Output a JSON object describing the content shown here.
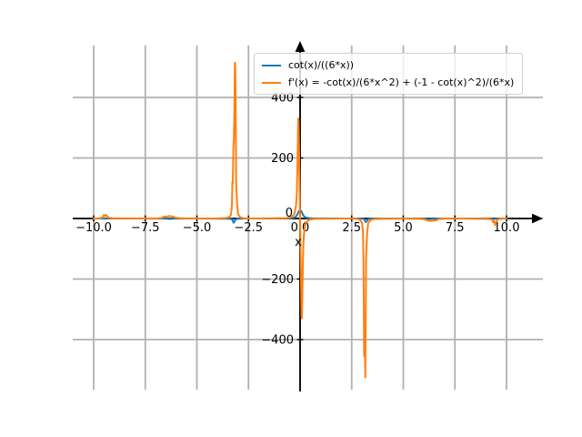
{
  "figure": {
    "background": "#ffffff"
  },
  "axes": {
    "xlabel": "x",
    "grid_color": "#b0b0b0",
    "axis_color": "#000000",
    "tick_label_color": "#000000"
  },
  "chart_data": {
    "type": "line",
    "title": "",
    "xlabel": "x",
    "ylabel": "",
    "xlim": [
      -11,
      11.7
    ],
    "ylim": [
      -585,
      600
    ],
    "grid": true,
    "legend_position": "upper center",
    "xticks": [
      {
        "value": -10,
        "label": "−10.0"
      },
      {
        "value": -7.5,
        "label": "−7.5"
      },
      {
        "value": -5,
        "label": "−5.0"
      },
      {
        "value": -2.5,
        "label": "−2.5"
      },
      {
        "value": 0,
        "label": "0.0"
      },
      {
        "value": 2.5,
        "label": "2.5"
      },
      {
        "value": 5,
        "label": "5.0"
      },
      {
        "value": 7.5,
        "label": "7.5"
      },
      {
        "value": 10,
        "label": "10.0"
      }
    ],
    "yticks": [
      {
        "value": -400,
        "label": "−400"
      },
      {
        "value": -200,
        "label": "−200"
      },
      {
        "value": 0,
        "label": "0"
      },
      {
        "value": 200,
        "label": "200"
      },
      {
        "value": 400,
        "label": "400"
      }
    ],
    "series": [
      {
        "name": "cot(x)/((6*x))",
        "color": "#1f77b4",
        "points": [
          [
            -10,
            0.05
          ],
          [
            -9.6,
            0.05
          ],
          [
            -9.45,
            -0.4
          ],
          [
            -9.3,
            -0.1
          ],
          [
            -8,
            0.05
          ],
          [
            -6.5,
            -0.3
          ],
          [
            -6.3,
            -1.5
          ],
          [
            -6.15,
            -0.3
          ],
          [
            -5,
            0.05
          ],
          [
            -3.45,
            -0.6
          ],
          [
            -3.3,
            -2
          ],
          [
            -3.22,
            -14
          ],
          [
            -3.1,
            -2
          ],
          [
            -3,
            -0.6
          ],
          [
            -2.5,
            0.1
          ],
          [
            -1,
            0.2
          ],
          [
            -0.6,
            0.6
          ],
          [
            -0.45,
            1.2
          ],
          [
            -0.35,
            2.2
          ],
          [
            -0.25,
            4
          ],
          [
            -0.18,
            8
          ],
          [
            -0.12,
            15
          ],
          [
            -0.06,
            24
          ],
          [
            0,
            28
          ],
          [
            0.06,
            24
          ],
          [
            0.12,
            15
          ],
          [
            0.18,
            8
          ],
          [
            0.25,
            4
          ],
          [
            0.35,
            2.2
          ],
          [
            0.45,
            1.2
          ],
          [
            0.6,
            0.6
          ],
          [
            1,
            0.2
          ],
          [
            2.5,
            0.1
          ],
          [
            3,
            -0.6
          ],
          [
            3.1,
            -2
          ],
          [
            3.18,
            -12
          ],
          [
            3.3,
            -2
          ],
          [
            3.45,
            -0.6
          ],
          [
            5,
            0.05
          ],
          [
            6.1,
            -0.5
          ],
          [
            6.25,
            -2.5
          ],
          [
            6.4,
            -0.5
          ],
          [
            8,
            0.05
          ],
          [
            9.2,
            -0.8
          ],
          [
            9.35,
            -2.5
          ],
          [
            9.5,
            -0.5
          ],
          [
            10,
            0.05
          ]
        ]
      },
      {
        "name": "f'(x) = -cot(x)/(6*x^2) + (-1 - cot(x)^2)/(6*x)",
        "color": "#ff7f0e",
        "points": [
          [
            -10,
            -0.15
          ],
          [
            -9.7,
            0.6
          ],
          [
            -9.55,
            4
          ],
          [
            -9.5,
            12
          ],
          [
            -9.45,
            8
          ],
          [
            -9.4,
            12
          ],
          [
            -9.3,
            3
          ],
          [
            -9.1,
            0.8
          ],
          [
            -8.5,
            0.2
          ],
          [
            -7,
            0.1
          ],
          [
            -6.7,
            1.5
          ],
          [
            -6.6,
            6
          ],
          [
            -6.45,
            7
          ],
          [
            -6.3,
            8
          ],
          [
            -6.15,
            6
          ],
          [
            -6,
            2
          ],
          [
            -5.8,
            0.6
          ],
          [
            -5,
            0.15
          ],
          [
            -4,
            0.3
          ],
          [
            -3.6,
            1.5
          ],
          [
            -3.45,
            4
          ],
          [
            -3.35,
            12
          ],
          [
            -3.3,
            45
          ],
          [
            -3.28,
            120
          ],
          [
            -3.26,
            115
          ],
          [
            -3.24,
            210
          ],
          [
            -3.22,
            255
          ],
          [
            -3.21,
            250
          ],
          [
            -3.19,
            330
          ],
          [
            -3.17,
            420
          ],
          [
            -3.16,
            515
          ],
          [
            -3.14,
            500
          ],
          [
            -3.12,
            380
          ],
          [
            -3.1,
            120
          ],
          [
            -3.05,
            45
          ],
          [
            -3,
            14
          ],
          [
            -2.9,
            4
          ],
          [
            -2.75,
            1
          ],
          [
            -2.5,
            0.3
          ],
          [
            -2,
            0.1
          ],
          [
            -1.5,
            0.2
          ],
          [
            -1,
            0.5
          ],
          [
            -0.7,
            1.2
          ],
          [
            -0.5,
            3
          ],
          [
            -0.4,
            6
          ],
          [
            -0.3,
            12
          ],
          [
            -0.25,
            22
          ],
          [
            -0.2,
            42
          ],
          [
            -0.16,
            82
          ],
          [
            -0.13,
            160
          ],
          [
            -0.11,
            250
          ],
          [
            -0.09,
            330
          ],
          [
            -0.07,
            320
          ],
          [
            0.07,
            -320
          ],
          [
            0.09,
            -330
          ],
          [
            0.11,
            -250
          ],
          [
            0.13,
            -160
          ],
          [
            0.16,
            -82
          ],
          [
            0.2,
            -42
          ],
          [
            0.25,
            -22
          ],
          [
            0.3,
            -12
          ],
          [
            0.4,
            -6
          ],
          [
            0.5,
            -3
          ],
          [
            0.7,
            -1.2
          ],
          [
            1,
            -0.5
          ],
          [
            1.5,
            -0.2
          ],
          [
            2,
            -0.1
          ],
          [
            2.5,
            -0.3
          ],
          [
            2.75,
            -1
          ],
          [
            2.9,
            -4
          ],
          [
            3,
            -14
          ],
          [
            3.05,
            -45
          ],
          [
            3.07,
            -150
          ],
          [
            3.09,
            -300
          ],
          [
            3.1,
            -455
          ],
          [
            3.12,
            -350
          ],
          [
            3.14,
            -420
          ],
          [
            3.16,
            -525
          ],
          [
            3.18,
            -330
          ],
          [
            3.2,
            -120
          ],
          [
            3.25,
            -45
          ],
          [
            3.3,
            -14
          ],
          [
            3.45,
            -4
          ],
          [
            3.6,
            -1.5
          ],
          [
            4,
            -0.3
          ],
          [
            5,
            -0.15
          ],
          [
            5.8,
            -0.6
          ],
          [
            6,
            -2
          ],
          [
            6.15,
            -6
          ],
          [
            6.3,
            -8
          ],
          [
            6.45,
            -7
          ],
          [
            6.6,
            -6
          ],
          [
            6.7,
            -1.5
          ],
          [
            7,
            -0.1
          ],
          [
            8.5,
            -0.2
          ],
          [
            9.1,
            -0.8
          ],
          [
            9.3,
            -3
          ],
          [
            9.35,
            -12
          ],
          [
            9.4,
            -9
          ],
          [
            9.45,
            -22
          ],
          [
            9.5,
            -12
          ],
          [
            9.55,
            -4
          ],
          [
            9.7,
            -0.6
          ],
          [
            10,
            -0.15
          ]
        ]
      }
    ]
  }
}
